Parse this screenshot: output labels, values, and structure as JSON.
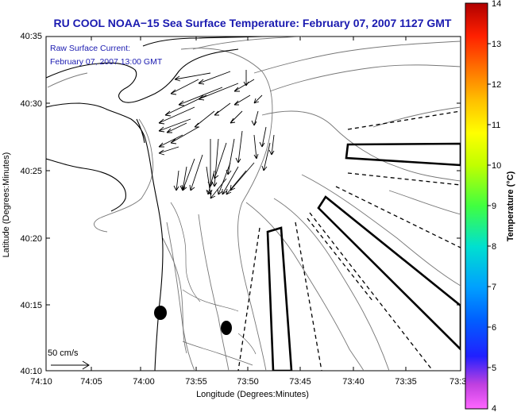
{
  "title": "RU COOL  NOAA−15  Sea Surface Temperature:  February 07, 2007 1127 GMT",
  "current_note": {
    "line1": "Raw Surface Current:",
    "line2": "February 07, 2007 13:00 GMT"
  },
  "axes": {
    "xlabel": "Longitude (Degrees:Minutes)",
    "ylabel": "Latitude (Degrees:Minutes)",
    "xticks": [
      "74:10",
      "74:05",
      "74:00",
      "73:55",
      "73:50",
      "73:45",
      "73:40",
      "73:35",
      "73:3"
    ],
    "yticks": [
      "40:35",
      "40:30",
      "40:25",
      "40:20",
      "40:15",
      "40:10"
    ]
  },
  "scale_arrow": {
    "label": "50 cm/s"
  },
  "colorbar": {
    "label": "Temperature (°C)",
    "ticks": [
      "14",
      "13",
      "12",
      "11",
      "10",
      "9",
      "8",
      "7",
      "6",
      "5",
      "4"
    ],
    "min": 4,
    "max": 14
  },
  "chart_data": {
    "type": "map",
    "x_range": [
      "74:10",
      "73:30"
    ],
    "y_range": [
      "40:10",
      "40:35"
    ],
    "layers": [
      "coastline",
      "bathymetry contours",
      "surface current vectors",
      "shipping lanes"
    ]
  }
}
